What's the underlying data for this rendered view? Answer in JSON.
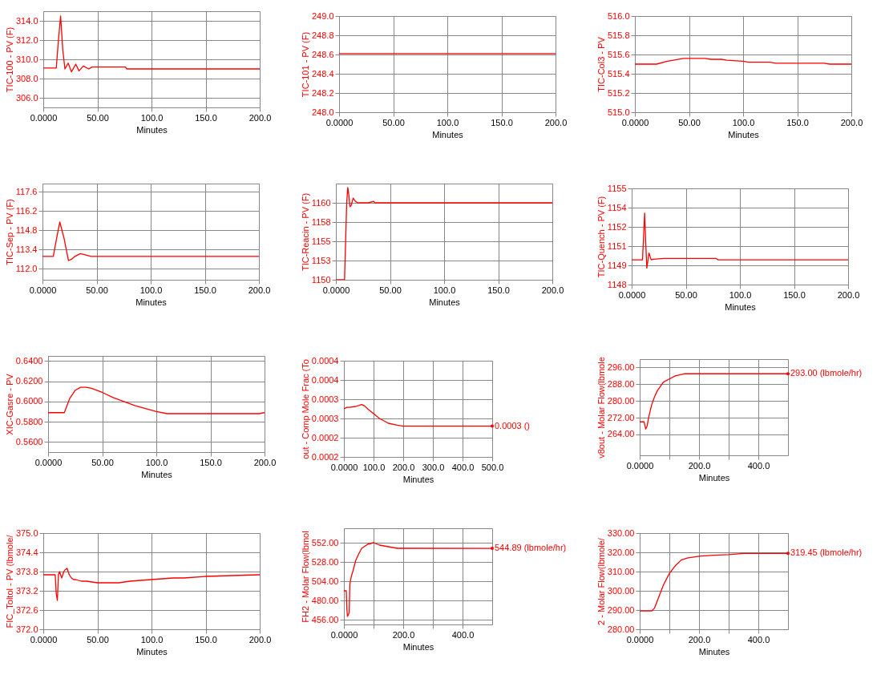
{
  "chart_data": [
    {
      "type": "line",
      "xlabel": "Minutes",
      "ylabel": "TIC-100 - PV (F)",
      "color": "#ff0000",
      "grid": true,
      "x": [
        0,
        12,
        14,
        16,
        18,
        20,
        23,
        26,
        30,
        33,
        37,
        42,
        45,
        76,
        77,
        200
      ],
      "values": [
        309.1,
        309.1,
        312,
        314.5,
        311,
        309,
        309.6,
        308.7,
        309.5,
        308.8,
        309.3,
        309.0,
        309.2,
        309.2,
        309.0,
        309.0
      ],
      "xlim": [
        0,
        200
      ],
      "xticks": [
        {
          "value": 0,
          "label": "0.0000"
        },
        {
          "value": 50,
          "label": "50.00"
        },
        {
          "value": 100,
          "label": "100.0"
        },
        {
          "value": 150,
          "label": "150.0"
        },
        {
          "value": 200,
          "label": "200.0"
        }
      ],
      "ylim": [
        305,
        315
      ],
      "yticks": [
        {
          "value": 306,
          "label": "306.0"
        },
        {
          "value": 308,
          "label": "308.0"
        },
        {
          "value": 310,
          "label": "310.0"
        },
        {
          "value": 312,
          "label": "312.0"
        },
        {
          "value": 314,
          "label": "314.0"
        }
      ]
    },
    {
      "type": "line",
      "xlabel": "Minutes",
      "ylabel": "TIC-101 - PV (F)",
      "color": "#ff0000",
      "grid": true,
      "x": [
        0,
        200
      ],
      "values": [
        248.61,
        248.61
      ],
      "xlim": [
        0,
        200
      ],
      "xticks": [
        {
          "value": 0,
          "label": "0.0000"
        },
        {
          "value": 50,
          "label": "50.00"
        },
        {
          "value": 100,
          "label": "100.0"
        },
        {
          "value": 150,
          "label": "150.0"
        },
        {
          "value": 200,
          "label": "200.0"
        }
      ],
      "ylim": [
        248,
        249
      ],
      "yticks": [
        {
          "value": 248,
          "label": "248.0"
        },
        {
          "value": 248.2,
          "label": "248.2"
        },
        {
          "value": 248.4,
          "label": "248.4"
        },
        {
          "value": 248.6,
          "label": "248.6"
        },
        {
          "value": 248.8,
          "label": "248.8"
        },
        {
          "value": 249,
          "label": "249.0"
        }
      ]
    },
    {
      "type": "line",
      "xlabel": "Minutes",
      "ylabel": "TIC-Col3 - PV",
      "color": "#ff0000",
      "grid": true,
      "x": [
        0,
        20,
        30,
        45,
        65,
        70,
        80,
        85,
        100,
        105,
        125,
        130,
        150,
        175,
        180,
        200
      ],
      "values": [
        515.5,
        515.5,
        515.53,
        515.56,
        515.56,
        515.55,
        515.55,
        515.54,
        515.53,
        515.52,
        515.52,
        515.51,
        515.51,
        515.51,
        515.5,
        515.5
      ],
      "xlim": [
        0,
        200
      ],
      "xticks": [
        {
          "value": 0,
          "label": "0.0000"
        },
        {
          "value": 50,
          "label": "50.00"
        },
        {
          "value": 100,
          "label": "100.0"
        },
        {
          "value": 150,
          "label": "150.0"
        },
        {
          "value": 200,
          "label": "200.0"
        }
      ],
      "ylim": [
        515,
        516
      ],
      "yticks": [
        {
          "value": 515,
          "label": "515.0"
        },
        {
          "value": 515.2,
          "label": "515.2"
        },
        {
          "value": 515.4,
          "label": "515.4"
        },
        {
          "value": 515.6,
          "label": "515.6"
        },
        {
          "value": 515.8,
          "label": "515.8"
        },
        {
          "value": 516,
          "label": "516.0"
        }
      ]
    },
    {
      "type": "line",
      "xlabel": "Minutes",
      "ylabel": "TIC-Sep - PV (F)",
      "color": "#ff0000",
      "grid": true,
      "x": [
        0,
        10,
        13,
        16,
        18,
        20,
        22,
        24,
        27,
        30,
        35,
        40,
        45,
        200
      ],
      "values": [
        112.9,
        112.9,
        114.2,
        115.4,
        114.8,
        114.2,
        113.4,
        112.6,
        112.7,
        112.9,
        113.1,
        113.0,
        112.9,
        112.9
      ],
      "xlim": [
        0,
        200
      ],
      "xticks": [
        {
          "value": 0,
          "label": "0.0000"
        },
        {
          "value": 50,
          "label": "50.00"
        },
        {
          "value": 100,
          "label": "100.0"
        },
        {
          "value": 150,
          "label": "150.0"
        },
        {
          "value": 200,
          "label": "200.0"
        }
      ],
      "ylim": [
        111.2,
        118.2
      ],
      "yticks": [
        {
          "value": 112,
          "label": "112.0"
        },
        113.4,
        114.8,
        116.2,
        117.6
      ]
    },
    {
      "type": "line",
      "xlabel": "Minutes",
      "ylabel": "TIC-Reacin - PV (F)",
      "color": "#ff0000",
      "grid": true,
      "x": [
        0,
        8,
        9,
        10,
        11,
        12,
        13,
        14,
        16,
        18,
        20,
        30,
        35,
        36,
        200
      ],
      "values": [
        1150,
        1150,
        1155,
        1160,
        1162,
        1161,
        1159.5,
        1159.6,
        1160.6,
        1160.2,
        1160,
        1160,
        1160.2,
        1160,
        1160
      ],
      "xlim": [
        0,
        200
      ],
      "xticks": [
        {
          "value": 0,
          "label": "0.0000"
        },
        {
          "value": 50,
          "label": "50.00"
        },
        {
          "value": 100,
          "label": "100.0"
        },
        {
          "value": 150,
          "label": "150.0"
        },
        {
          "value": 200,
          "label": "200.0"
        }
      ],
      "ylim": [
        1150,
        1162.5
      ],
      "yticks": [
        1150,
        {
          "value": 1152.5,
          "label": "1153"
        },
        1155,
        {
          "value": 1157.5,
          "label": "1158"
        },
        1160
      ]
    },
    {
      "type": "line",
      "xlabel": "Minutes",
      "ylabel": "TIC-Quench - PV (F)",
      "color": "#ff0000",
      "grid": true,
      "x": [
        0,
        10,
        11,
        12,
        13,
        14,
        16,
        18,
        20,
        30,
        50,
        78,
        80,
        200
      ],
      "values": [
        1149.8,
        1149.8,
        1151.5,
        1153.2,
        1151,
        1149.2,
        1150.3,
        1149.8,
        1149.85,
        1149.9,
        1149.9,
        1149.9,
        1149.8,
        1149.8
      ],
      "xlim": [
        0,
        200
      ],
      "xticks": [
        {
          "value": 0,
          "label": "0.0000"
        },
        {
          "value": 50,
          "label": "50.00"
        },
        {
          "value": 100,
          "label": "100.0"
        },
        {
          "value": 150,
          "label": "150.0"
        },
        {
          "value": 200,
          "label": "200.0"
        }
      ],
      "ylim": [
        1148,
        1155
      ],
      "yticks": [
        1148,
        {
          "value": 1149.4,
          "label": "1149"
        },
        {
          "value": 1150.8,
          "label": "1151"
        },
        {
          "value": 1152.2,
          "label": "1152"
        },
        {
          "value": 1153.6,
          "label": "1154"
        },
        1155
      ]
    },
    {
      "type": "line",
      "xlabel": "Minutes",
      "ylabel": "XIC-Gasre - PV",
      "color": "#ff0000",
      "grid": true,
      "x": [
        0,
        15,
        20,
        25,
        30,
        35,
        40,
        50,
        60,
        70,
        80,
        90,
        100,
        110,
        150,
        195,
        200
      ],
      "values": [
        0.589,
        0.589,
        0.603,
        0.611,
        0.614,
        0.614,
        0.613,
        0.609,
        0.604,
        0.6,
        0.596,
        0.593,
        0.59,
        0.588,
        0.588,
        0.588,
        0.589
      ],
      "xlim": [
        0,
        200
      ],
      "xticks": [
        {
          "value": 0,
          "label": "0.0000"
        },
        {
          "value": 50,
          "label": "50.00"
        },
        {
          "value": 100,
          "label": "100.0"
        },
        {
          "value": 150,
          "label": "150.0"
        },
        {
          "value": 200,
          "label": "200.0"
        }
      ],
      "ylim": [
        0.55,
        0.645
      ],
      "yticks": [
        {
          "value": 0.56,
          "label": "0.5600"
        },
        {
          "value": 0.58,
          "label": "0.5800"
        },
        {
          "value": 0.6,
          "label": "0.6000"
        },
        {
          "value": 0.62,
          "label": "0.6200"
        },
        {
          "value": 0.64,
          "label": "0.6400"
        }
      ]
    },
    {
      "type": "line",
      "xlabel": "Minutes",
      "ylabel": "out - Comp Mole Frac (To",
      "color": "#ff0000",
      "grid": true,
      "x": [
        0,
        10,
        20,
        40,
        60,
        70,
        80,
        100,
        120,
        150,
        180,
        200,
        500
      ],
      "values": [
        0.0003,
        0.000303,
        0.000303,
        0.000305,
        0.000309,
        0.000306,
        0.0003,
        0.00029,
        0.00028,
        0.00027,
        0.000266,
        0.000264,
        0.000264
      ],
      "xlim": [
        0,
        500
      ],
      "xticks": [
        {
          "value": 0,
          "label": "0.0000"
        },
        {
          "value": 100,
          "label": "100.0"
        },
        {
          "value": 200,
          "label": "200.0"
        },
        {
          "value": 300,
          "label": "300.0"
        },
        {
          "value": 400,
          "label": "400.0"
        },
        {
          "value": 500,
          "label": "500.0"
        }
      ],
      "ylim": [
        0.0002,
        0.0004
      ],
      "yticks": [
        0.0002,
        {
          "value": 0.00024,
          "label": "0.0002"
        },
        {
          "value": 0.00028,
          "label": "0.0003"
        },
        {
          "value": 0.00032,
          "label": "0.0003"
        },
        {
          "value": 0.00036,
          "label": "0.0004"
        },
        0.0004
      ],
      "annotations": [
        "0.0003 ()"
      ]
    },
    {
      "type": "line",
      "xlabel": "Minutes",
      "ylabel": "v8out - Molar Flow(lbmole",
      "color": "#ff0000",
      "grid": true,
      "x": [
        0,
        15,
        20,
        25,
        30,
        40,
        50,
        60,
        70,
        80,
        100,
        120,
        150,
        170,
        500
      ],
      "values": [
        270,
        270,
        266.6,
        268,
        272,
        278,
        282,
        285,
        287,
        289,
        290.5,
        292,
        293,
        293,
        293
      ],
      "xlim": [
        0,
        500
      ],
      "xticks": [
        {
          "value": 0,
          "label": "0.0000"
        },
        {
          "value": 100,
          "label": null
        },
        {
          "value": 200,
          "label": "200.0"
        },
        {
          "value": 300,
          "label": null
        },
        {
          "value": 400,
          "label": "400.0"
        }
      ],
      "ylim": [
        254,
        300
      ],
      "yticks": [
        {
          "value": 264,
          "label": "264.00"
        },
        {
          "value": 272,
          "label": "272.00"
        },
        {
          "value": 280,
          "label": "280.00"
        },
        {
          "value": 288,
          "label": "288.00"
        },
        {
          "value": 296,
          "label": "296.00"
        }
      ],
      "annotations": [
        "293.00 (lbmole/hr)"
      ]
    },
    {
      "type": "line",
      "xlabel": "Minutes",
      "ylabel": "FIC_Toltol - PV (lbmole/",
      "color": "#ff0000",
      "grid": true,
      "x": [
        0,
        11,
        12,
        13,
        14,
        15,
        17,
        19,
        20,
        22,
        24,
        26,
        28,
        30,
        35,
        40,
        50,
        70,
        80,
        100,
        120,
        130,
        150,
        200
      ],
      "values": [
        373.7,
        373.7,
        373.1,
        372.9,
        373.7,
        373.8,
        373.6,
        373.8,
        373.85,
        373.9,
        373.7,
        373.6,
        373.55,
        373.55,
        373.5,
        373.5,
        373.45,
        373.45,
        373.5,
        373.55,
        373.6,
        373.6,
        373.65,
        373.7
      ],
      "xlim": [
        0,
        200
      ],
      "xticks": [
        {
          "value": 0,
          "label": "0.0000"
        },
        {
          "value": 50,
          "label": "50.00"
        },
        {
          "value": 100,
          "label": "100.0"
        },
        {
          "value": 150,
          "label": "150.0"
        },
        {
          "value": 200,
          "label": "200.0"
        }
      ],
      "ylim": [
        372,
        375
      ],
      "yticks": [
        {
          "value": 372,
          "label": "372.0"
        },
        372.6,
        373.2,
        373.8,
        374.4,
        {
          "value": 375,
          "label": "375.0"
        }
      ]
    },
    {
      "type": "line",
      "xlabel": "Minutes",
      "ylabel": "FH2 - Molar Flow(lbmol",
      "color": "#ff0000",
      "grid": true,
      "x": [
        0,
        8,
        10,
        12,
        15,
        18,
        20,
        25,
        30,
        40,
        50,
        60,
        80,
        100,
        120,
        180,
        500
      ],
      "values": [
        492,
        492,
        470,
        460,
        462,
        465,
        500,
        510,
        516,
        530,
        538,
        545,
        550,
        552,
        549,
        545,
        544.89
      ],
      "xlim": [
        0,
        500
      ],
      "xticks": [
        {
          "value": 0,
          "label": "0.0000"
        },
        {
          "value": 100,
          "label": null
        },
        {
          "value": 200,
          "label": "200.0"
        },
        {
          "value": 300,
          "label": null
        },
        {
          "value": 400,
          "label": "400.0"
        }
      ],
      "ylim": [
        450,
        570
      ],
      "yticks": [
        {
          "value": 456,
          "label": "456.00"
        },
        {
          "value": 480,
          "label": "480.00"
        },
        {
          "value": 504,
          "label": "504.00"
        },
        {
          "value": 528,
          "label": "528.00"
        },
        {
          "value": 552,
          "label": "552.00"
        }
      ],
      "annotations": [
        "544.89 (lbmole/hr)"
      ]
    },
    {
      "type": "line",
      "xlabel": "Minutes",
      "ylabel": "2 - Molar Flow(lbmole/",
      "color": "#ff0000",
      "grid": true,
      "x": [
        0,
        40,
        50,
        60,
        80,
        100,
        120,
        140,
        160,
        200,
        250,
        300,
        350,
        500
      ],
      "values": [
        289.5,
        289.5,
        291,
        295,
        303,
        309,
        313,
        316,
        317,
        318,
        318.5,
        318.8,
        319.45,
        319.45
      ],
      "xlim": [
        0,
        500
      ],
      "xticks": [
        {
          "value": 0,
          "label": "0.0000"
        },
        {
          "value": 100,
          "label": null
        },
        {
          "value": 200,
          "label": "200.0"
        },
        {
          "value": 300,
          "label": null
        },
        {
          "value": 400,
          "label": "400.0"
        }
      ],
      "ylim": [
        280,
        330
      ],
      "yticks": [
        {
          "value": 280,
          "label": "280.00"
        },
        {
          "value": 290,
          "label": "290.00"
        },
        {
          "value": 300,
          "label": "300.00"
        },
        {
          "value": 310,
          "label": "310.00"
        },
        {
          "value": 320,
          "label": "320.00"
        },
        {
          "value": 330,
          "label": "330.00"
        }
      ],
      "annotations": [
        "319.45 (lbmole/hr)"
      ]
    }
  ]
}
